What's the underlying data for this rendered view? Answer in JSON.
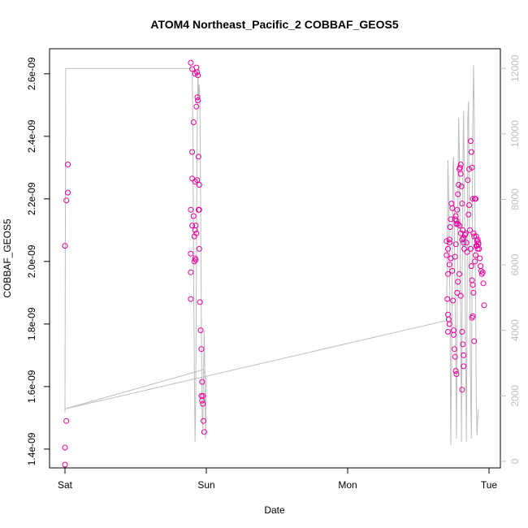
{
  "chart_data": {
    "type": "scatter",
    "title": "ATOM4 Northeast_Pacific_2 COBBAF_GEOS5",
    "xlabel": "Date",
    "ylabel": "COBBAF_GEOS5",
    "x_ticks": [
      "Sat",
      "Sun",
      "Mon",
      "Tue"
    ],
    "x_tick_values": [
      0,
      1,
      2,
      3
    ],
    "ylim": [
      1.34e-09,
      2.68e-09
    ],
    "y_ticks": [
      "1.4e-09",
      "1.6e-09",
      "1.8e-09",
      "2.0e-09",
      "2.2e-09",
      "2.4e-09",
      "2.6e-09"
    ],
    "y_tick_values": [
      1.4e-09,
      1.6e-09,
      1.8e-09,
      2e-09,
      2.2e-09,
      2.4e-09,
      2.6e-09
    ],
    "y2lim": [
      -200,
      12600
    ],
    "y2_ticks": [
      "0",
      "2000",
      "4000",
      "6000",
      "8000",
      "10000",
      "12000"
    ],
    "y2_tick_values": [
      0,
      2000,
      4000,
      6000,
      8000,
      10000,
      12000
    ],
    "grid": false,
    "colors": {
      "points": "#e6009a",
      "altitude_line": "#bdbdbd",
      "axes": "#000000",
      "right_axis": "#bdbdbd"
    },
    "series": [
      {
        "marker": "circle",
        "axis": "left",
        "points": [
          [
            0.0,
            1.35e-09
          ],
          [
            0.0,
            1.405e-09
          ],
          [
            0.01,
            1.49e-09
          ],
          [
            0.0,
            2.05e-09
          ],
          [
            0.01,
            2.195e-09
          ],
          [
            0.02,
            2.22e-09
          ],
          [
            0.02,
            2.31e-09
          ],
          [
            0.89,
            2.635e-09
          ],
          [
            0.9,
            2.615e-09
          ],
          [
            0.92,
            2.6e-09
          ],
          [
            0.935,
            2.605e-09
          ],
          [
            0.93,
            2.62e-09
          ],
          [
            0.94,
            2.595e-09
          ],
          [
            0.937,
            2.525e-09
          ],
          [
            0.94,
            2.515e-09
          ],
          [
            0.93,
            2.495e-09
          ],
          [
            0.91,
            2.445e-09
          ],
          [
            0.9,
            2.35e-09
          ],
          [
            0.945,
            2.335e-09
          ],
          [
            0.9,
            2.265e-09
          ],
          [
            0.92,
            2.255e-09
          ],
          [
            0.935,
            2.26e-09
          ],
          [
            0.95,
            2.245e-09
          ],
          [
            0.89,
            2.165e-09
          ],
          [
            0.91,
            2.145e-09
          ],
          [
            0.95,
            2.165e-09
          ],
          [
            0.945,
            2.165e-09
          ],
          [
            0.9,
            2.115e-09
          ],
          [
            0.925,
            2.115e-09
          ],
          [
            0.92,
            2.1e-09
          ],
          [
            0.93,
            2.09e-09
          ],
          [
            0.915,
            2.08e-09
          ],
          [
            0.95,
            2.04e-09
          ],
          [
            0.89,
            2.025e-09
          ],
          [
            0.92,
            2.01e-09
          ],
          [
            0.925,
            2.005e-09
          ],
          [
            0.915,
            2e-09
          ],
          [
            0.89,
            1.965e-09
          ],
          [
            0.89,
            1.88e-09
          ],
          [
            0.955,
            1.87e-09
          ],
          [
            0.96,
            1.78e-09
          ],
          [
            0.965,
            1.72e-09
          ],
          [
            0.97,
            1.615e-09
          ],
          [
            0.965,
            1.57e-09
          ],
          [
            0.975,
            1.57e-09
          ],
          [
            0.97,
            1.555e-09
          ],
          [
            0.975,
            1.545e-09
          ],
          [
            0.98,
            1.49e-09
          ],
          [
            0.985,
            1.455e-09
          ],
          [
            2.7,
            2.065e-09
          ],
          [
            2.71,
            2.04e-09
          ],
          [
            2.72,
            2.06e-09
          ],
          [
            2.7,
            2.02e-09
          ],
          [
            2.72,
            2.07e-09
          ],
          [
            2.725,
            2.11e-09
          ],
          [
            2.73,
            2.135e-09
          ],
          [
            2.735,
            2.185e-09
          ],
          [
            2.74,
            2.17e-09
          ],
          [
            2.71,
            1.96e-09
          ],
          [
            2.72,
            1.99e-09
          ],
          [
            2.73,
            2.01e-09
          ],
          [
            2.74,
            1.97e-09
          ],
          [
            2.705,
            1.88e-09
          ],
          [
            2.71,
            1.83e-09
          ],
          [
            2.715,
            1.815e-09
          ],
          [
            2.72,
            1.8e-09
          ],
          [
            2.71,
            1.775e-09
          ],
          [
            2.75,
            1.78e-09
          ],
          [
            2.75,
            1.765e-09
          ],
          [
            2.745,
            1.875e-09
          ],
          [
            2.76,
            2.015e-09
          ],
          [
            2.765,
            2.055e-09
          ],
          [
            2.77,
            2.12e-09
          ],
          [
            2.775,
            2.165e-09
          ],
          [
            2.78,
            2.215e-09
          ],
          [
            2.785,
            2.245e-09
          ],
          [
            2.79,
            2.295e-09
          ],
          [
            2.795,
            2.3e-09
          ],
          [
            2.8,
            2.31e-09
          ],
          [
            2.8,
            2.28e-09
          ],
          [
            2.805,
            2.24e-09
          ],
          [
            2.81,
            2.185e-09
          ],
          [
            2.815,
            2.1e-09
          ],
          [
            2.82,
            2.06e-09
          ],
          [
            2.825,
            2.04e-09
          ],
          [
            2.76,
            2.135e-09
          ],
          [
            2.765,
            2.145e-09
          ],
          [
            2.77,
            2.13e-09
          ],
          [
            2.78,
            2.12e-09
          ],
          [
            2.79,
            2.115e-09
          ],
          [
            2.8,
            2.09e-09
          ],
          [
            2.81,
            2.07e-09
          ],
          [
            2.82,
            2.075e-09
          ],
          [
            2.83,
            2.085e-09
          ],
          [
            2.835,
            2.09e-09
          ],
          [
            2.84,
            2.06e-09
          ],
          [
            2.845,
            2.03e-09
          ],
          [
            2.755,
            1.72e-09
          ],
          [
            2.76,
            1.695e-09
          ],
          [
            2.765,
            1.65e-09
          ],
          [
            2.77,
            1.64e-09
          ],
          [
            2.775,
            1.9e-09
          ],
          [
            2.78,
            1.935e-09
          ],
          [
            2.79,
            1.96e-09
          ],
          [
            2.8,
            1.89e-09
          ],
          [
            2.81,
            1.775e-09
          ],
          [
            2.815,
            1.735e-09
          ],
          [
            2.82,
            1.7e-09
          ],
          [
            2.82,
            1.665e-09
          ],
          [
            2.81,
            1.59e-09
          ],
          [
            2.85,
            2.26e-09
          ],
          [
            2.86,
            2.295e-09
          ],
          [
            2.87,
            2.385e-09
          ],
          [
            2.875,
            2.35e-09
          ],
          [
            2.88,
            2.3e-09
          ],
          [
            2.885,
            2.2e-09
          ],
          [
            2.89,
            2.09e-09
          ],
          [
            2.895,
            2.08e-09
          ],
          [
            2.855,
            2.15e-09
          ],
          [
            2.86,
            2.18e-09
          ],
          [
            2.865,
            2.1e-09
          ],
          [
            2.87,
            2.04e-09
          ],
          [
            2.875,
            1.985e-09
          ],
          [
            2.88,
            1.94e-09
          ],
          [
            2.885,
            1.925e-09
          ],
          [
            2.89,
            1.9e-09
          ],
          [
            2.895,
            1.745e-09
          ],
          [
            2.88,
            1.82e-09
          ],
          [
            2.885,
            1.825e-09
          ],
          [
            2.9,
            2e-09
          ],
          [
            2.905,
            2.02e-09
          ],
          [
            2.91,
            2.05e-09
          ],
          [
            2.915,
            2.065e-09
          ],
          [
            2.92,
            2.07e-09
          ],
          [
            2.925,
            2.055e-09
          ],
          [
            2.93,
            2.04e-09
          ],
          [
            2.935,
            2.01e-09
          ],
          [
            2.94,
            1.985e-09
          ],
          [
            2.945,
            1.97e-09
          ],
          [
            2.95,
            1.96e-09
          ],
          [
            2.955,
            1.965e-09
          ],
          [
            2.96,
            1.93e-09
          ],
          [
            2.965,
            1.86e-09
          ],
          [
            2.9,
            2.2e-09
          ],
          [
            2.905,
            2.2e-09
          ],
          [
            2.91,
            2.08e-09
          ],
          [
            2.915,
            2.05e-09
          ],
          [
            2.92,
            2.04e-09
          ],
          [
            2.925,
            2.06e-09
          ]
        ]
      },
      {
        "name": "altitude",
        "axis": "right",
        "line": [
          [
            0.0,
            1500
          ],
          [
            0.005,
            12000
          ],
          [
            0.5,
            12000
          ],
          [
            0.9,
            12000
          ],
          [
            0.905,
            10000
          ],
          [
            0.91,
            6000
          ],
          [
            0.915,
            3000
          ],
          [
            0.92,
            600
          ],
          [
            0.925,
            2000
          ],
          [
            0.93,
            6000
          ],
          [
            0.935,
            10000
          ],
          [
            0.94,
            12000
          ],
          [
            0.945,
            11000
          ],
          [
            0.95,
            11500
          ],
          [
            0.955,
            11000
          ],
          [
            0.96,
            8000
          ],
          [
            0.965,
            4000
          ],
          [
            0.97,
            1500
          ],
          [
            0.975,
            1000
          ],
          [
            0.98,
            2500
          ],
          [
            0.985,
            4000
          ],
          [
            0.99,
            2500
          ],
          [
            0.995,
            700
          ],
          [
            1.0,
            2500
          ],
          [
            0.98,
            2800
          ],
          [
            0.0,
            1600
          ],
          [
            2.7,
            4300
          ],
          [
            2.705,
            7000
          ],
          [
            2.71,
            9200
          ],
          [
            2.715,
            8000
          ],
          [
            2.72,
            6000
          ],
          [
            2.725,
            4000
          ],
          [
            2.73,
            500
          ],
          [
            2.735,
            3000
          ],
          [
            2.74,
            6000
          ],
          [
            2.745,
            9000
          ],
          [
            2.75,
            9300
          ],
          [
            2.755,
            7000
          ],
          [
            2.76,
            5000
          ],
          [
            2.765,
            3000
          ],
          [
            2.77,
            700
          ],
          [
            2.775,
            4500
          ],
          [
            2.78,
            8000
          ],
          [
            2.785,
            10500
          ],
          [
            2.79,
            9500
          ],
          [
            2.795,
            7000
          ],
          [
            2.8,
            4000
          ],
          [
            2.805,
            600
          ],
          [
            2.81,
            5000
          ],
          [
            2.815,
            9000
          ],
          [
            2.82,
            10700
          ],
          [
            2.825,
            9000
          ],
          [
            2.83,
            6000
          ],
          [
            2.835,
            3000
          ],
          [
            2.84,
            600
          ],
          [
            2.845,
            5000
          ],
          [
            2.85,
            10500
          ],
          [
            2.855,
            11000
          ],
          [
            2.86,
            8000
          ],
          [
            2.865,
            5000
          ],
          [
            2.87,
            2000
          ],
          [
            2.875,
            700
          ],
          [
            2.88,
            6000
          ],
          [
            2.885,
            10000
          ],
          [
            2.89,
            12100
          ],
          [
            2.895,
            11000
          ],
          [
            2.9,
            8000
          ],
          [
            2.905,
            5000
          ],
          [
            2.91,
            2000
          ],
          [
            2.915,
            800
          ],
          [
            2.92,
            1300
          ],
          [
            2.925,
            1600
          ]
        ]
      }
    ]
  }
}
